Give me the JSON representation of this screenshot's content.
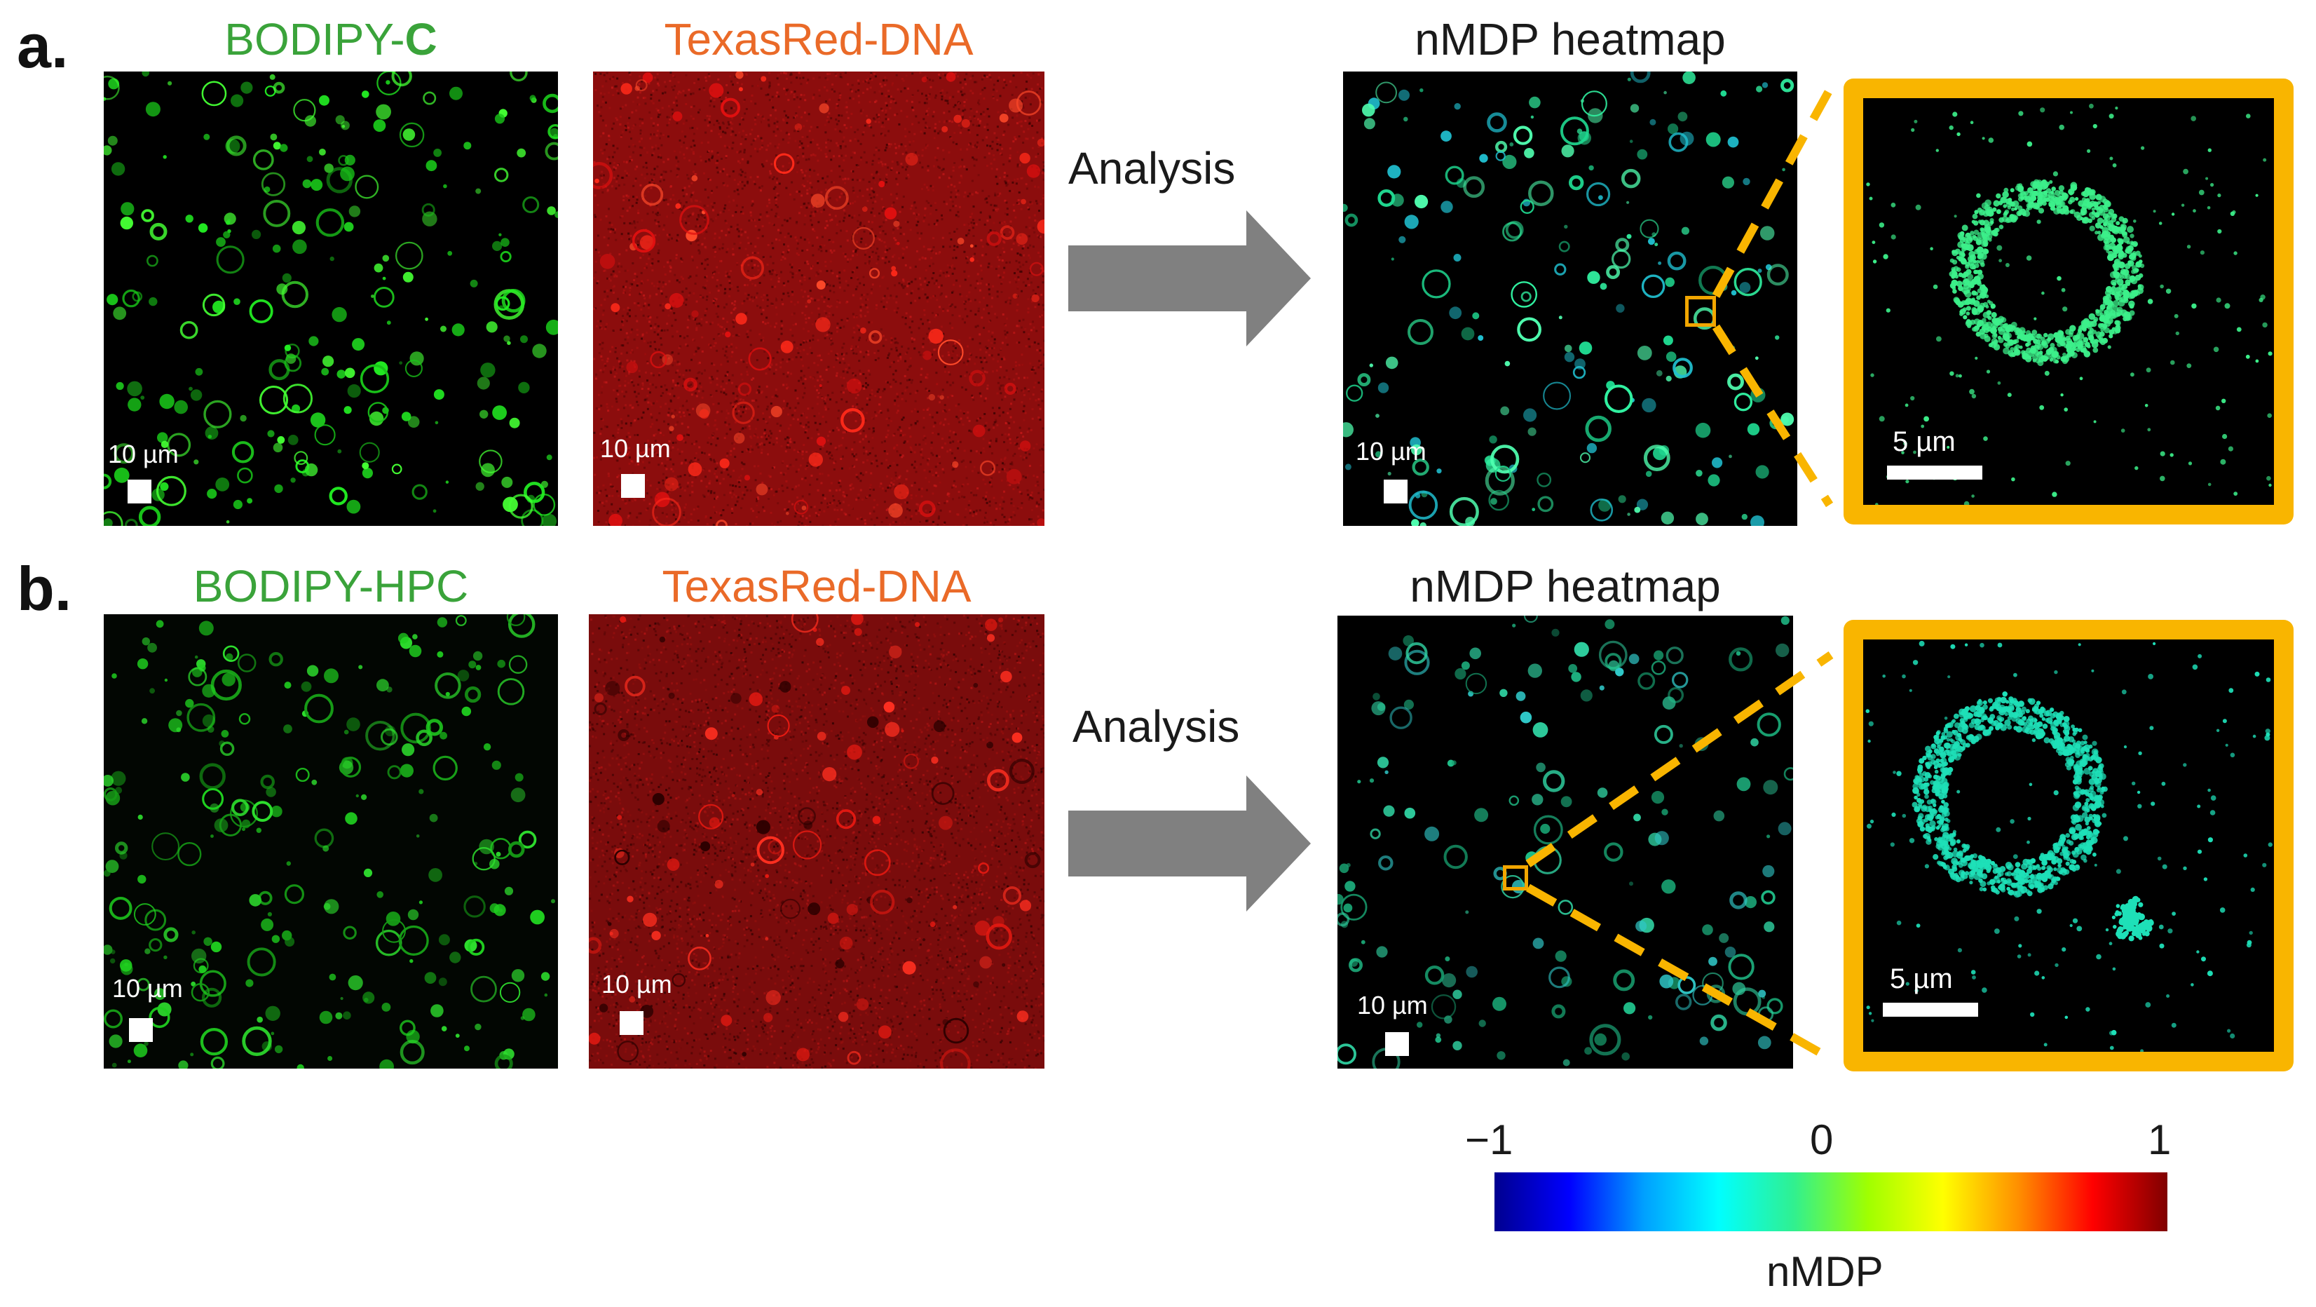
{
  "colors": {
    "zoom_frame": "#f9b500",
    "bodipy_title": "#3aa33a",
    "texasred_title": "#ea6a28",
    "arrow": "#808080"
  },
  "panel_a": {
    "letter": "a.",
    "green_title": "BODIPY-",
    "green_title_bold": "C",
    "red_title": "TexasRed-DNA",
    "heatmap_title": "nMDP heatmap",
    "analysis_label": "Analysis",
    "scale_micro": "10 µm",
    "scale_red": "10 µm",
    "scale_heat": "10 µm",
    "scale_zoom": "5 µm"
  },
  "panel_b": {
    "letter": "b.",
    "green_title": "BODIPY-HPC",
    "red_title": "TexasRed-DNA",
    "heatmap_title": "nMDP heatmap",
    "analysis_label": "Analysis",
    "scale_micro": "10 µm",
    "scale_red": "10 µm",
    "scale_heat": "10 µm",
    "scale_zoom": "5 µm"
  },
  "colorbar": {
    "min_label": "−1",
    "mid_label": "0",
    "max_label": "1",
    "min": -1,
    "mid": 0,
    "max": 1,
    "label": "nMDP",
    "stops": [
      "#00008f",
      "#0000ff",
      "#00a0ff",
      "#00ffff",
      "#30f090",
      "#a0ff00",
      "#ffff00",
      "#ff9000",
      "#ff0000",
      "#800000"
    ]
  }
}
